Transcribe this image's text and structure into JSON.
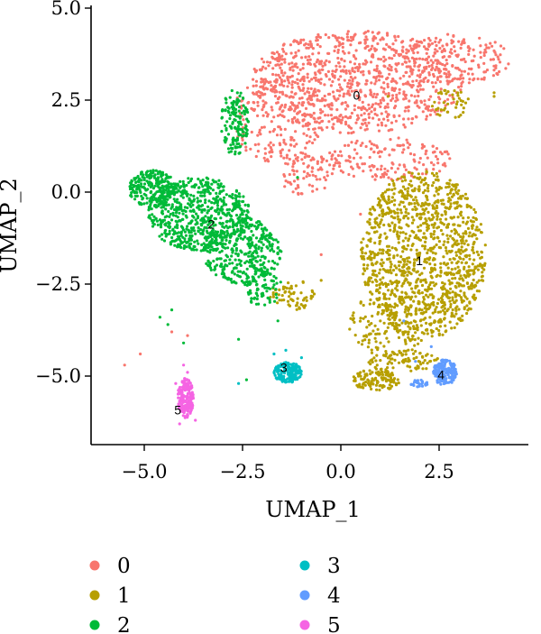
{
  "chart_data": {
    "type": "scatter",
    "title": "",
    "xlabel": "UMAP_1",
    "ylabel": "UMAP_2",
    "xlim": [
      -6.0,
      4.5
    ],
    "ylim": [
      -6.8,
      5.0
    ],
    "xticks": [
      -5.0,
      -2.5,
      0.0,
      2.5
    ],
    "xtick_labels": [
      "−5.0",
      "−2.5",
      "0.0",
      "2.5"
    ],
    "yticks": [
      5.0,
      2.5,
      0.0,
      -2.5,
      -5.0
    ],
    "ytick_labels": [
      "5.0",
      "2.5",
      "0.0",
      "−2.5",
      "−5.0"
    ],
    "grid": false,
    "legend_position": "bottom",
    "series": [
      {
        "name": "0",
        "color": "#F8766D",
        "label_pos": [
          0.4,
          2.6
        ],
        "blobs": [
          [
            0.4,
            3.0,
            2.7,
            1.4,
            900
          ],
          [
            -1.6,
            2.0,
            1.2,
            1.2,
            200
          ],
          [
            2.9,
            3.6,
            1.4,
            0.7,
            180
          ],
          [
            1.2,
            0.9,
            1.6,
            0.6,
            160
          ],
          [
            -0.9,
            0.5,
            0.7,
            0.6,
            80
          ]
        ],
        "points": [
          [
            -5.5,
            -4.7
          ],
          [
            -5.1,
            -4.4
          ],
          [
            -4.3,
            -3.8
          ],
          [
            -2.2,
            -2.0
          ],
          [
            -3.9,
            -3.9
          ],
          [
            0.5,
            -0.6
          ],
          [
            -0.5,
            -1.7
          ],
          [
            0.2,
            1.8
          ]
        ]
      },
      {
        "name": "1",
        "color": "#B79F00",
        "label_pos": [
          2.0,
          -1.9
        ],
        "blobs": [
          [
            2.1,
            -1.7,
            1.6,
            2.3,
            1200
          ],
          [
            1.2,
            -3.6,
            1.0,
            0.9,
            160
          ],
          [
            0.9,
            -5.1,
            0.6,
            0.3,
            120
          ],
          [
            -1.2,
            -2.8,
            0.6,
            0.4,
            60
          ],
          [
            2.8,
            2.4,
            0.5,
            0.4,
            40
          ],
          [
            1.6,
            -4.6,
            0.9,
            0.3,
            70
          ]
        ],
        "points": [
          [
            3.9,
            2.6
          ],
          [
            3.9,
            2.7
          ],
          [
            1.2,
            2.6
          ],
          [
            -0.5,
            -2.4
          ],
          [
            0.8,
            -4.9
          ]
        ]
      },
      {
        "name": "2",
        "color": "#00BA38",
        "label_pos": [
          -3.3,
          -0.9
        ],
        "blobs": [
          [
            -3.6,
            -0.6,
            1.3,
            1.0,
            650
          ],
          [
            -4.8,
            0.1,
            0.6,
            0.5,
            220
          ],
          [
            -2.7,
            1.9,
            0.35,
            0.9,
            140
          ],
          [
            -2.5,
            -1.6,
            1.0,
            0.9,
            350
          ],
          [
            -2.0,
            -2.6,
            0.5,
            0.5,
            80
          ]
        ],
        "points": [
          [
            -4.3,
            -3.2
          ],
          [
            -4.4,
            -3.6
          ],
          [
            -4.0,
            -4.1
          ],
          [
            -2.6,
            -4.0
          ],
          [
            -2.4,
            -5.1
          ],
          [
            -1.6,
            -3.5
          ],
          [
            -1.1,
            0.4
          ],
          [
            -2.1,
            -0.8
          ],
          [
            -4.6,
            -3.4
          ]
        ]
      },
      {
        "name": "3",
        "color": "#00BFC4",
        "label_pos": [
          -1.45,
          -4.8
        ],
        "blobs": [
          [
            -1.35,
            -4.9,
            0.35,
            0.28,
            160
          ]
        ],
        "points": [
          [
            -2.6,
            -5.2
          ],
          [
            -1.7,
            -4.4
          ],
          [
            -1.0,
            -4.5
          ],
          [
            -1.4,
            -4.3
          ]
        ]
      },
      {
        "name": "4",
        "color": "#619CFF",
        "label_pos": [
          2.55,
          -5.0
        ],
        "blobs": [
          [
            2.65,
            -4.9,
            0.3,
            0.35,
            170
          ],
          [
            2.0,
            -5.2,
            0.25,
            0.1,
            25
          ]
        ],
        "points": [
          [
            1.6,
            -3.5
          ],
          [
            1.9,
            -4.6
          ],
          [
            2.3,
            -4.2
          ]
        ]
      },
      {
        "name": "5",
        "color": "#F564E3",
        "label_pos": [
          -4.15,
          -5.95
        ],
        "blobs": [
          [
            -3.95,
            -5.6,
            0.2,
            0.55,
            170
          ]
        ],
        "points": [
          [
            -4.2,
            -5.2
          ],
          [
            -3.9,
            -4.9
          ],
          [
            -3.7,
            -6.2
          ],
          [
            -4.1,
            -6.3
          ],
          [
            -4.0,
            -4.7
          ]
        ]
      }
    ]
  }
}
